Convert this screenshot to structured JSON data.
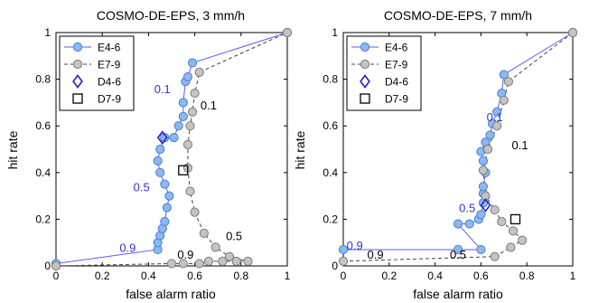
{
  "colors": {
    "blue_line": "#5a5aff",
    "blue_marker_fill": "#8ab8f0",
    "blue_marker_edge": "#4a7fcf",
    "gray_line": "#444444",
    "gray_marker_fill": "#c4c4c4",
    "gray_marker_edge": "#7a7a7a",
    "diamond": "#2222cc",
    "square": "#000000",
    "annot_blue": "#3333cc",
    "annot_black": "#000000",
    "diag_line": "#444444"
  },
  "chart_data": [
    {
      "type": "line",
      "title": "COSMO-DE-EPS, 3 mm/h",
      "xlabel": "false alarm ratio",
      "ylabel": "hit rate",
      "xlim": [
        0,
        1
      ],
      "ylim": [
        0,
        1
      ],
      "xticks": [
        "0",
        "0.2",
        "0.4",
        "0.6",
        "0.8",
        "1"
      ],
      "yticks": [
        "0",
        "0.2",
        "0.4",
        "0.6",
        "0.8",
        "1"
      ],
      "grid": false,
      "legend_position": "top-left",
      "series": [
        {
          "name": "E4-6",
          "style": "solid-circle-blue",
          "x": [
            0.0,
            0.44,
            0.44,
            0.45,
            0.46,
            0.47,
            0.48,
            0.49,
            0.47,
            0.45,
            0.44,
            0.45,
            0.47,
            0.51,
            0.53,
            0.55,
            0.55,
            0.56,
            0.57,
            0.59,
            1.0
          ],
          "y": [
            0.01,
            0.07,
            0.1,
            0.13,
            0.16,
            0.19,
            0.25,
            0.3,
            0.35,
            0.4,
            0.45,
            0.5,
            0.55,
            0.55,
            0.6,
            0.64,
            0.7,
            0.79,
            0.81,
            0.87,
            1.0
          ]
        },
        {
          "name": "E7-9",
          "style": "dashed-circle-gray",
          "x": [
            0.0,
            0.5,
            0.55,
            0.62,
            0.66,
            0.72,
            0.78,
            0.83,
            0.75,
            0.69,
            0.64,
            0.6,
            0.58,
            0.57,
            0.57,
            0.58,
            0.59,
            0.6,
            0.62,
            1.0
          ],
          "y": [
            0.0,
            0.01,
            0.01,
            0.01,
            0.02,
            0.02,
            0.02,
            0.02,
            0.04,
            0.08,
            0.14,
            0.23,
            0.32,
            0.42,
            0.52,
            0.6,
            0.66,
            0.74,
            0.83,
            1.0
          ]
        },
        {
          "name": "D4-6",
          "style": "diamond",
          "x": [
            0.46
          ],
          "y": [
            0.55
          ]
        },
        {
          "name": "D7-9",
          "style": "square",
          "x": [
            0.55
          ],
          "y": [
            0.41
          ]
        }
      ],
      "annotations": [
        {
          "text": "0.1",
          "x": 0.46,
          "y": 0.76,
          "color": "blue"
        },
        {
          "text": "0.5",
          "x": 0.37,
          "y": 0.34,
          "color": "blue"
        },
        {
          "text": "0.9",
          "x": 0.31,
          "y": 0.08,
          "color": "blue"
        },
        {
          "text": "0.1",
          "x": 0.66,
          "y": 0.69,
          "color": "black"
        },
        {
          "text": "0.9",
          "x": 0.56,
          "y": 0.05,
          "color": "black"
        },
        {
          "text": "0.5",
          "x": 0.77,
          "y": 0.13,
          "color": "black"
        }
      ]
    },
    {
      "type": "line",
      "title": "COSMO-DE-EPS, 7 mm/h",
      "xlabel": "false alarm ratio",
      "ylabel": "hit rate",
      "xlim": [
        0,
        1
      ],
      "ylim": [
        0,
        1
      ],
      "xticks": [
        "0",
        "0.2",
        "0.4",
        "0.6",
        "0.8",
        "1"
      ],
      "yticks": [
        "0",
        "0.2",
        "0.4",
        "0.6",
        "0.8",
        "1"
      ],
      "grid": false,
      "legend_position": "top-left",
      "series": [
        {
          "name": "E4-6",
          "style": "solid-circle-blue",
          "x": [
            0.0,
            0.5,
            0.6,
            0.5,
            0.55,
            0.59,
            0.6,
            0.61,
            0.61,
            0.61,
            0.62,
            0.61,
            0.6,
            0.62,
            0.64,
            0.65,
            0.67,
            0.69,
            0.7,
            1.0
          ],
          "y": [
            0.07,
            0.07,
            0.07,
            0.18,
            0.18,
            0.2,
            0.22,
            0.27,
            0.31,
            0.34,
            0.4,
            0.45,
            0.49,
            0.53,
            0.56,
            0.61,
            0.66,
            0.74,
            0.82,
            1.0
          ]
        },
        {
          "name": "E7-9",
          "style": "dashed-circle-gray",
          "x": [
            0.0,
            0.66,
            0.73,
            0.78,
            0.74,
            0.69,
            0.66,
            0.62,
            0.61,
            0.63,
            0.67,
            0.7,
            0.72,
            1.0
          ],
          "y": [
            0.02,
            0.04,
            0.08,
            0.11,
            0.15,
            0.19,
            0.24,
            0.3,
            0.41,
            0.5,
            0.6,
            0.71,
            0.79,
            1.0
          ]
        },
        {
          "name": "D4-6",
          "style": "diamond",
          "x": [
            0.62
          ],
          "y": [
            0.26
          ]
        },
        {
          "name": "D7-9",
          "style": "square",
          "x": [
            0.75
          ],
          "y": [
            0.2
          ]
        }
      ],
      "annotations": [
        {
          "text": "0.1",
          "x": 0.66,
          "y": 0.64,
          "color": "blue"
        },
        {
          "text": "0.5",
          "x": 0.54,
          "y": 0.25,
          "color": "blue"
        },
        {
          "text": "0.9",
          "x": 0.05,
          "y": 0.09,
          "color": "blue"
        },
        {
          "text": "0.1",
          "x": 0.77,
          "y": 0.52,
          "color": "black"
        },
        {
          "text": "0.9",
          "x": 0.14,
          "y": 0.05,
          "color": "black"
        },
        {
          "text": "0.5",
          "x": 0.5,
          "y": 0.05,
          "color": "black"
        }
      ]
    }
  ]
}
